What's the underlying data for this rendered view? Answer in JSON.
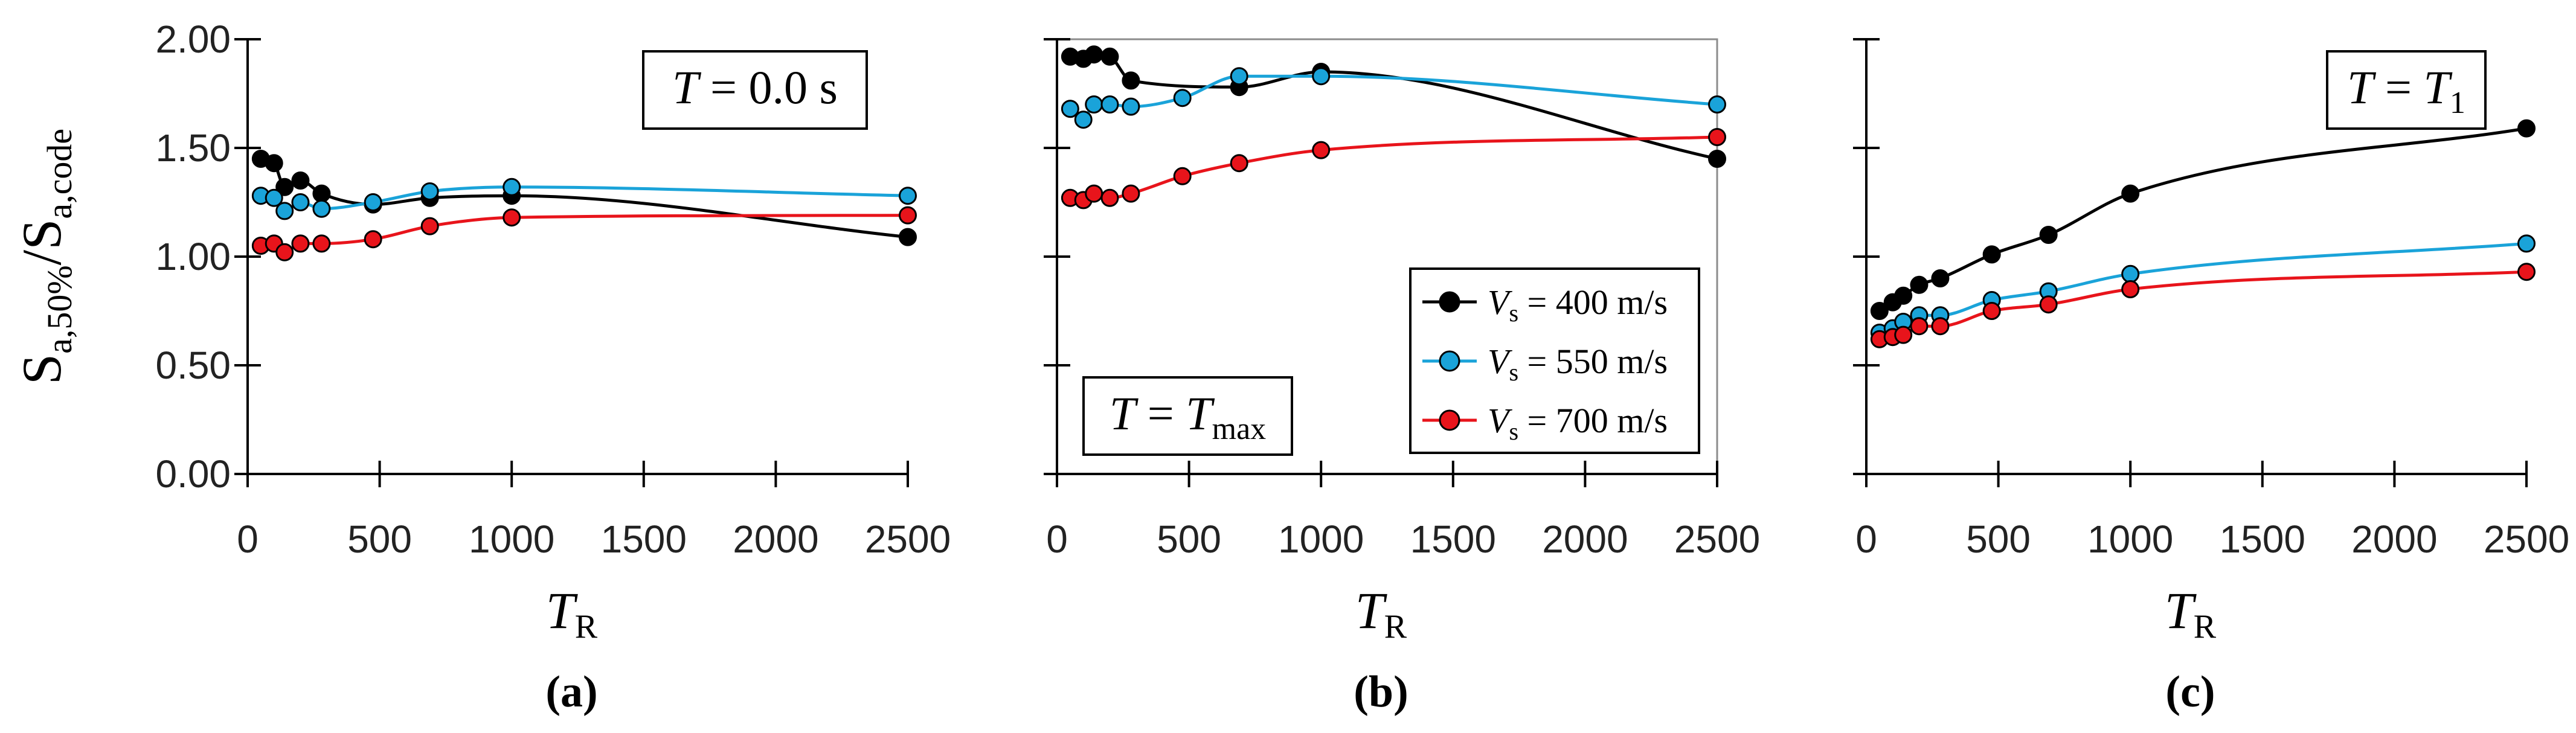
{
  "chart_data": [
    {
      "type": "line",
      "panel_label": "(a)",
      "annotation": {
        "symbol": "T",
        "text": " = 0.0 s"
      },
      "xlabel": "T",
      "xlabel_sub": "R",
      "ylabel": "S",
      "ylabel_sub1": "a,50%",
      "ylabel_sep": "/S",
      "ylabel_sub2": "a,code",
      "xlim": [
        0,
        2500
      ],
      "ylim": [
        0,
        2
      ],
      "xticks": [
        "0",
        "500",
        "1000",
        "1500",
        "2000",
        "2500"
      ],
      "yticks": [
        "0.00",
        "0.50",
        "1.00",
        "1.50",
        "2.00"
      ],
      "series": [
        {
          "name": "Vs = 400 m/s",
          "color": "#000000",
          "x": [
            50,
            100,
            140,
            200,
            280,
            475,
            690,
            1000,
            2500
          ],
          "y": [
            1.45,
            1.43,
            1.32,
            1.35,
            1.29,
            1.24,
            1.27,
            1.28,
            1.09
          ]
        },
        {
          "name": "Vs = 550 m/s",
          "color": "#1aa3d9",
          "x": [
            50,
            100,
            140,
            200,
            280,
            475,
            690,
            1000,
            2500
          ],
          "y": [
            1.28,
            1.27,
            1.21,
            1.25,
            1.22,
            1.25,
            1.3,
            1.32,
            1.28
          ]
        },
        {
          "name": "Vs = 700 m/s",
          "color": "#e8141b",
          "x": [
            50,
            100,
            140,
            200,
            280,
            475,
            690,
            1000,
            2500
          ],
          "y": [
            1.05,
            1.06,
            1.02,
            1.06,
            1.06,
            1.08,
            1.14,
            1.18,
            1.19
          ]
        }
      ]
    },
    {
      "type": "line",
      "panel_label": "(b)",
      "annotation": {
        "symbol": "T",
        "text": " = ",
        "symbol2": "T",
        "sub": "max"
      },
      "xlabel": "T",
      "xlabel_sub": "R",
      "xlim": [
        0,
        2500
      ],
      "ylim": [
        0,
        2
      ],
      "xticks": [
        "0",
        "500",
        "1000",
        "1500",
        "2000",
        "2500"
      ],
      "legend": {
        "position": "right",
        "entries": [
          {
            "symbol": "V",
            "sub": "s",
            "text": " = 400 m/s",
            "color": "#000000"
          },
          {
            "symbol": "V",
            "sub": "s",
            "text": " = 550 m/s",
            "color": "#1aa3d9"
          },
          {
            "symbol": "V",
            "sub": "s",
            "text": " = 700 m/s",
            "color": "#e8141b"
          }
        ]
      },
      "series": [
        {
          "name": "Vs = 400 m/s",
          "color": "#000000",
          "x": [
            50,
            100,
            140,
            200,
            280,
            690,
            1000,
            2500
          ],
          "y": [
            1.92,
            1.91,
            1.93,
            1.92,
            1.81,
            1.78,
            1.85,
            1.45
          ]
        },
        {
          "name": "Vs = 550 m/s",
          "color": "#1aa3d9",
          "x": [
            50,
            100,
            140,
            200,
            280,
            475,
            690,
            1000,
            2500
          ],
          "y": [
            1.68,
            1.63,
            1.7,
            1.7,
            1.69,
            1.73,
            1.83,
            1.83,
            1.7
          ]
        },
        {
          "name": "Vs = 700 m/s",
          "color": "#e8141b",
          "x": [
            50,
            100,
            140,
            200,
            280,
            475,
            690,
            1000,
            2500
          ],
          "y": [
            1.27,
            1.26,
            1.29,
            1.27,
            1.29,
            1.37,
            1.43,
            1.49,
            1.55
          ]
        }
      ]
    },
    {
      "type": "line",
      "panel_label": "(c)",
      "annotation": {
        "symbol": "T",
        "text": " = ",
        "symbol2": "T",
        "sub": "1"
      },
      "xlabel": "T",
      "xlabel_sub": "R",
      "xlim": [
        0,
        2500
      ],
      "ylim": [
        0,
        2
      ],
      "xticks": [
        "0",
        "500",
        "1000",
        "1500",
        "2000",
        "2500"
      ],
      "series": [
        {
          "name": "Vs = 400 m/s",
          "color": "#000000",
          "x": [
            50,
            100,
            140,
            200,
            280,
            475,
            690,
            1000,
            2500
          ],
          "y": [
            0.75,
            0.79,
            0.82,
            0.87,
            0.9,
            1.01,
            1.1,
            1.29,
            1.59
          ]
        },
        {
          "name": "Vs = 550 m/s",
          "color": "#1aa3d9",
          "x": [
            50,
            100,
            140,
            200,
            280,
            475,
            690,
            1000,
            2500
          ],
          "y": [
            0.65,
            0.67,
            0.7,
            0.73,
            0.73,
            0.8,
            0.84,
            0.92,
            1.06
          ]
        },
        {
          "name": "Vs = 700 m/s",
          "color": "#e8141b",
          "x": [
            50,
            100,
            140,
            200,
            280,
            475,
            690,
            1000,
            2500
          ],
          "y": [
            0.62,
            0.63,
            0.64,
            0.68,
            0.68,
            0.75,
            0.78,
            0.85,
            0.93
          ]
        }
      ]
    }
  ]
}
